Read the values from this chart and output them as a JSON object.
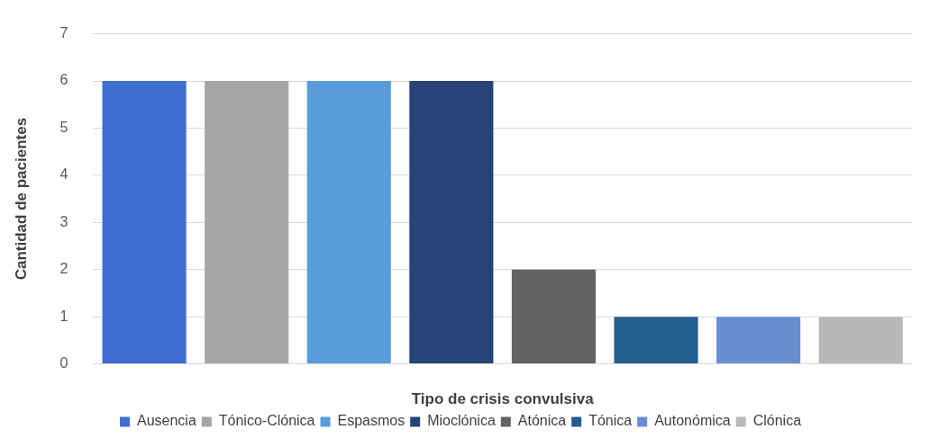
{
  "chart_data": {
    "type": "bar",
    "xlabel": "Tipo de crisis convulsiva",
    "ylabel": "Cantidad de pacientes",
    "categories": [
      null,
      null,
      null,
      null,
      null,
      null,
      null,
      null
    ],
    "series": [
      {
        "name": "Ausencia",
        "color": "#3f6fd0",
        "values": [
          6,
          null,
          null,
          null,
          null,
          null,
          null,
          null
        ]
      },
      {
        "name": "Tónico-Clónica",
        "color": "#a5a5a5",
        "values": [
          null,
          6,
          null,
          null,
          null,
          null,
          null,
          null
        ]
      },
      {
        "name": "Espasmos",
        "color": "#579ddb",
        "values": [
          null,
          null,
          6,
          null,
          null,
          null,
          null,
          null
        ]
      },
      {
        "name": "Mioclónica",
        "color": "#264478",
        "values": [
          null,
          null,
          null,
          6,
          null,
          null,
          null,
          null
        ]
      },
      {
        "name": "Atónica",
        "color": "#636363",
        "values": [
          null,
          null,
          null,
          null,
          2,
          null,
          null,
          null
        ]
      },
      {
        "name": "Tónica",
        "color": "#255e91",
        "values": [
          null,
          null,
          null,
          null,
          null,
          1,
          null,
          null
        ]
      },
      {
        "name": "Autonómica",
        "color": "#698ed0",
        "values": [
          null,
          null,
          null,
          null,
          null,
          null,
          1,
          null
        ]
      },
      {
        "name": "Clónica",
        "color": "#b8b8b8",
        "values": [
          null,
          null,
          null,
          null,
          null,
          null,
          null,
          1
        ]
      }
    ],
    "ylim": [
      0,
      7
    ],
    "yticks": [
      0,
      1,
      2,
      3,
      4,
      5,
      6,
      7
    ],
    "grid": "y",
    "legend": "bottom",
    "tick_labels": "y"
  }
}
